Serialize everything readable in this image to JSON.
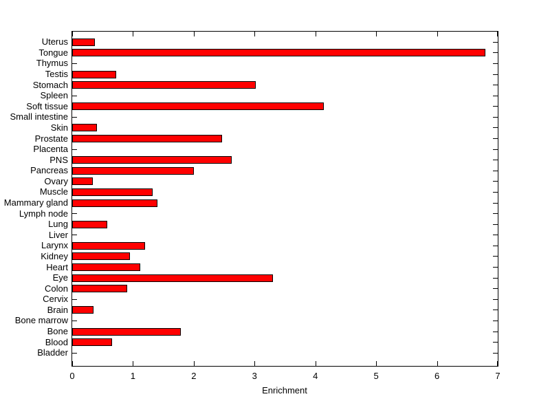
{
  "figure": {
    "background": "#ffffff",
    "axis_color": "#000000"
  },
  "chart_data": {
    "type": "bar",
    "orientation": "horizontal",
    "title": "",
    "xlabel": "Enrichment",
    "ylabel": "",
    "xlim": [
      0,
      7
    ],
    "xticks": [
      0,
      1,
      2,
      3,
      4,
      5,
      6,
      7
    ],
    "grid": false,
    "legend": null,
    "bar_color": "#ff0000",
    "bar_border_color": "#000000",
    "categories": [
      "Uterus",
      "Tongue",
      "Thymus",
      "Testis",
      "Stomach",
      "Spleen",
      "Soft tissue",
      "Small intestine",
      "Skin",
      "Prostate",
      "Placenta",
      "PNS",
      "Pancreas",
      "Ovary",
      "Muscle",
      "Mammary gland",
      "Lymph node",
      "Lung",
      "Liver",
      "Larynx",
      "Kidney",
      "Heart",
      "Eye",
      "Colon",
      "Cervix",
      "Brain",
      "Bone marrow",
      "Bone",
      "Blood",
      "Bladder"
    ],
    "values": [
      0.37,
      6.8,
      0,
      0.72,
      3.02,
      0,
      4.14,
      0,
      0.41,
      2.46,
      0,
      2.62,
      2.0,
      0.34,
      1.32,
      1.4,
      0,
      0.58,
      0,
      1.2,
      0.95,
      1.12,
      3.3,
      0.91,
      0,
      0.35,
      0,
      1.79,
      0.66,
      0
    ]
  }
}
